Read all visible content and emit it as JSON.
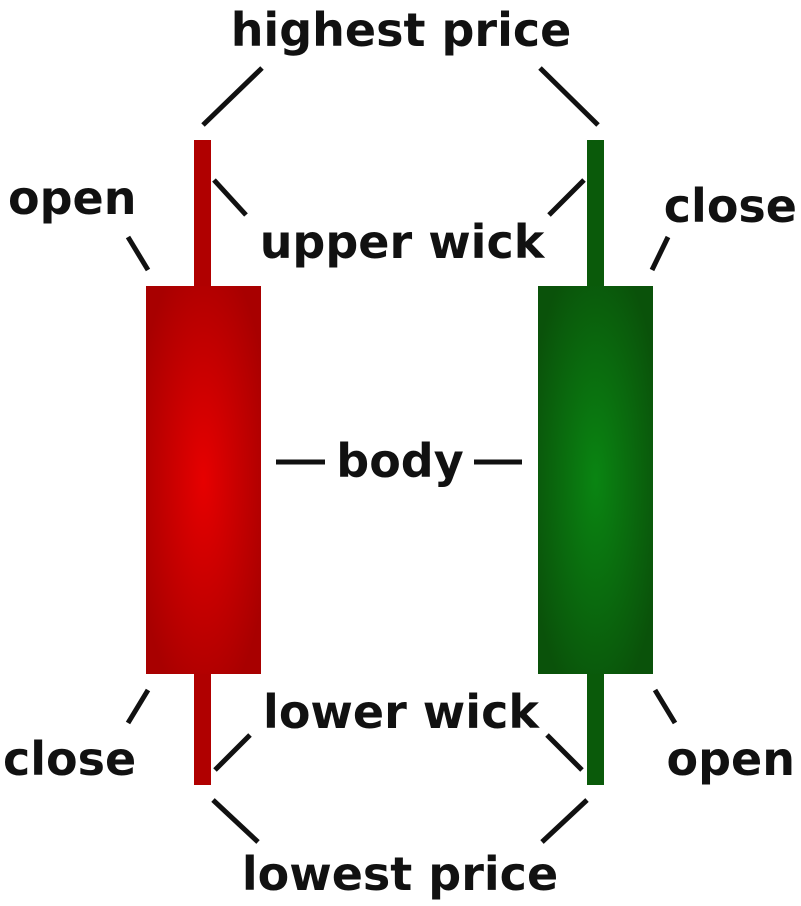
{
  "labels": {
    "highest_price": "highest price",
    "upper_wick": "upper wick",
    "open_left": "open",
    "close_right": "close",
    "body": "body",
    "lower_wick": "lower wick",
    "close_left": "close",
    "open_right": "open",
    "lowest_price": "lowest price"
  },
  "colors": {
    "bearish_center": "#e00000",
    "bearish_edge": "#b00000",
    "bullish_center": "#0a8a12",
    "bullish_edge": "#0a5a0a"
  }
}
